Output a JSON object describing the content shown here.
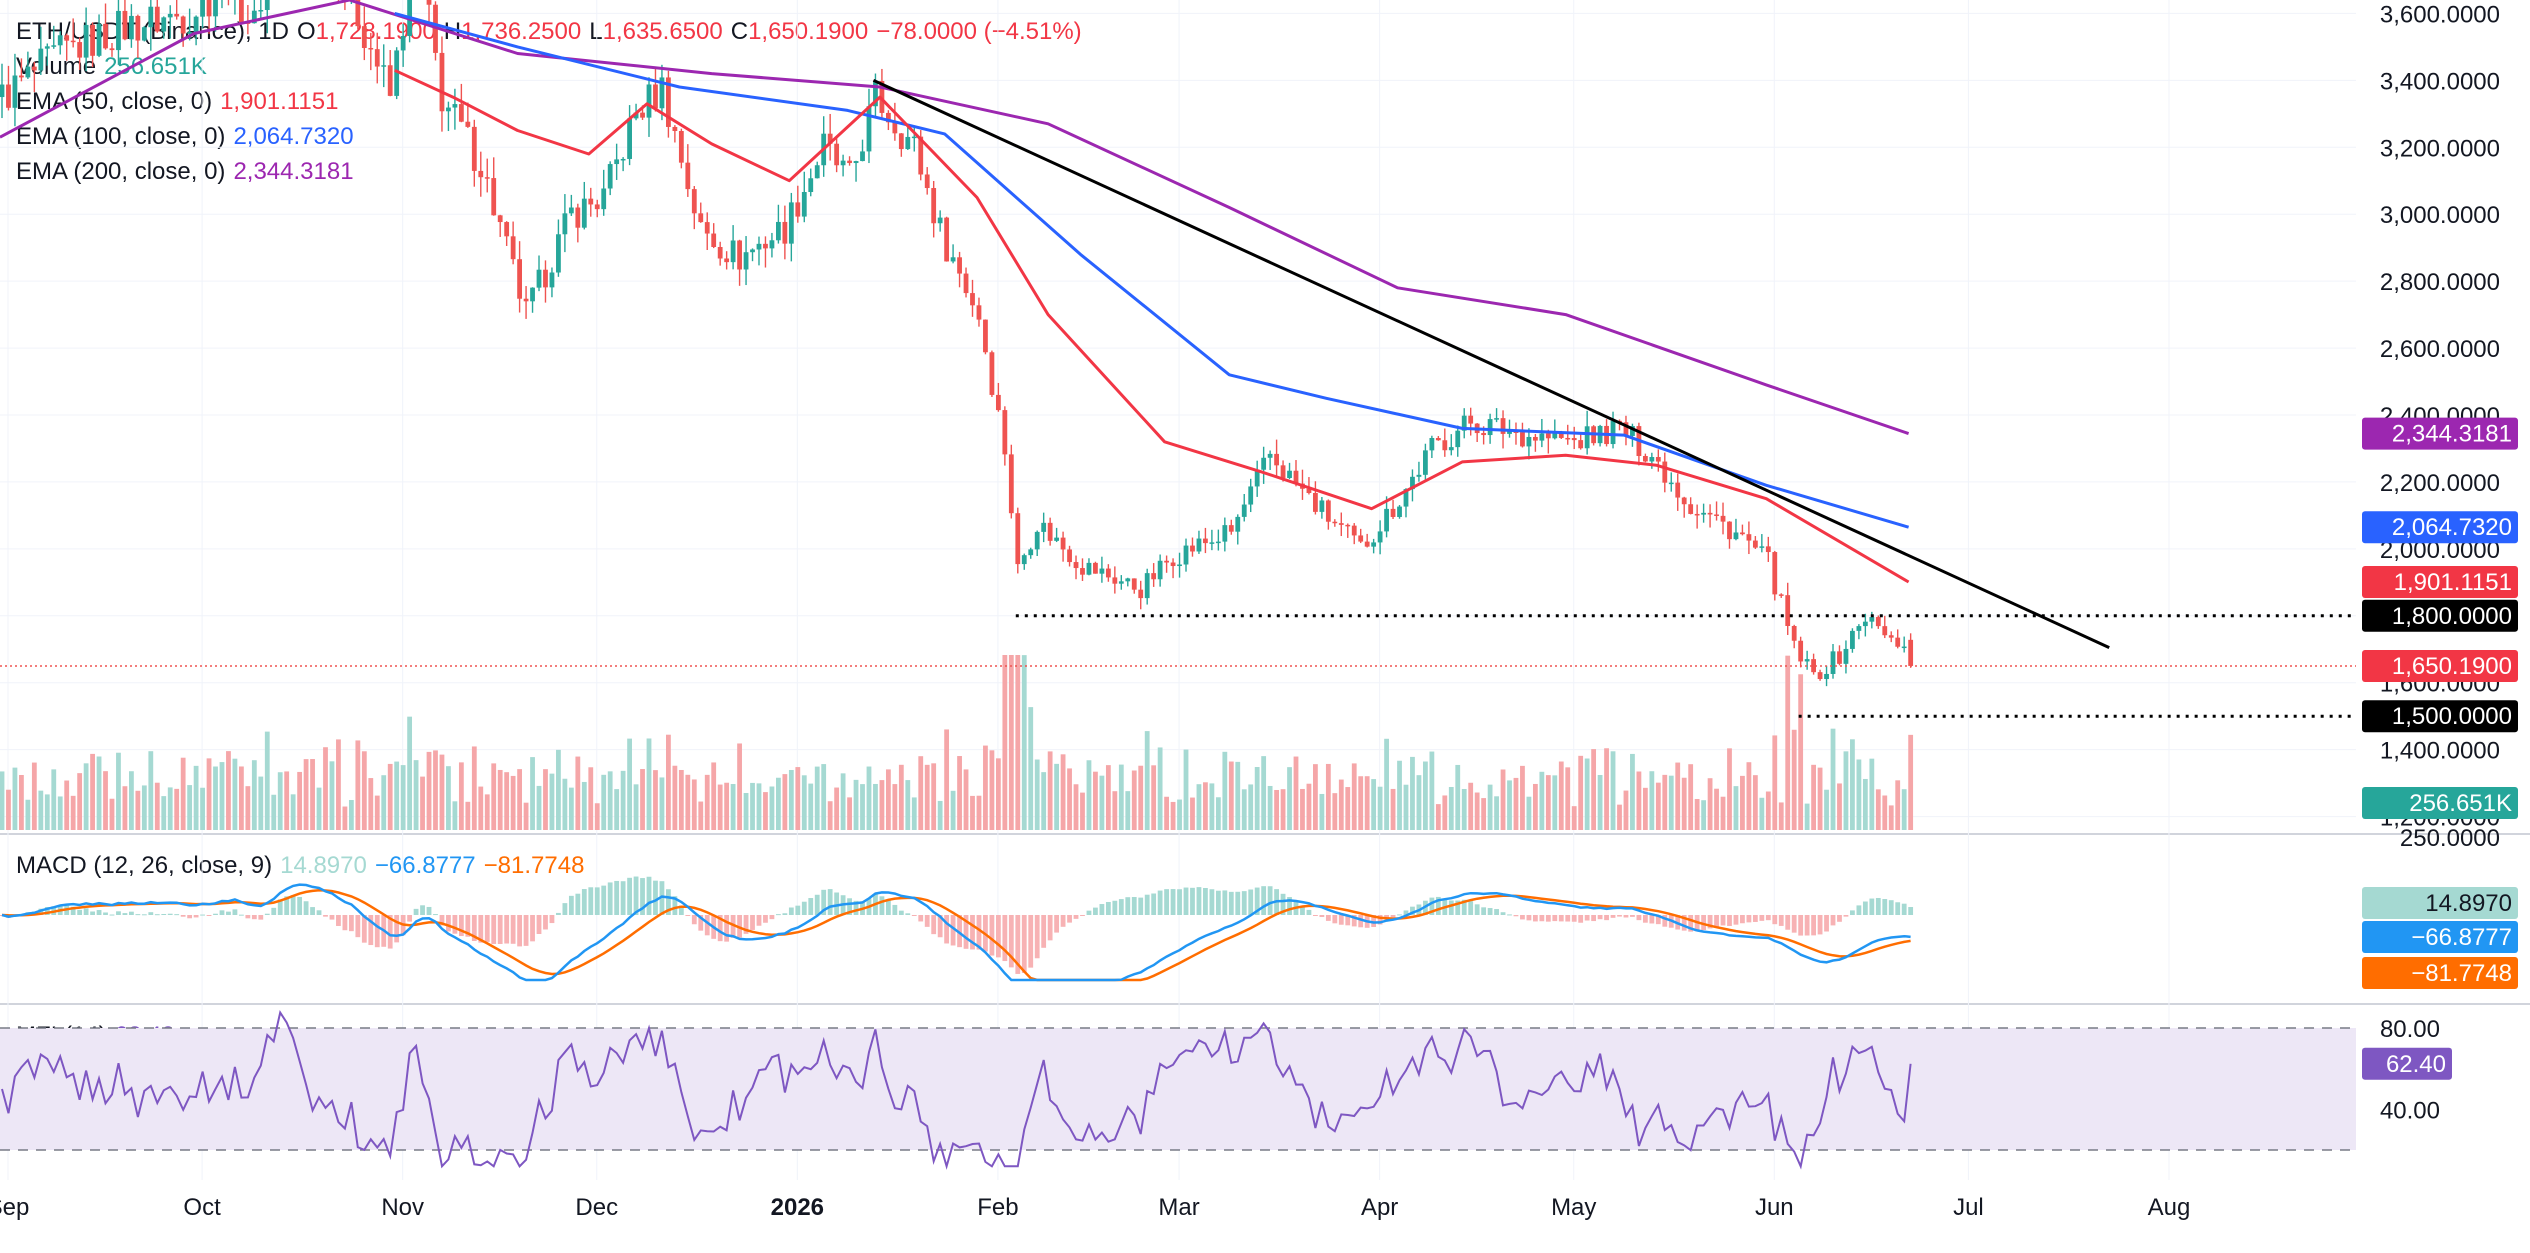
{
  "header": {
    "symbol": "ETH/USDT (Binance), 1D",
    "open_label": "O",
    "open": "1,728.1900",
    "high_label": "H",
    "high": "1,736.2500",
    "low_label": "L",
    "low": "1,635.6500",
    "close_label": "C",
    "close": "1,650.1900",
    "change": "−78.0000 (−4.51%)"
  },
  "legends": {
    "volume": {
      "label": "Volume",
      "value": "256.651K"
    },
    "ema50": {
      "label": "EMA (50, close, 0)",
      "value": "1,901.1151"
    },
    "ema100": {
      "label": "EMA (100, close, 0)",
      "value": "2,064.7320"
    },
    "ema200": {
      "label": "EMA (200, close, 0)",
      "value": "2,344.3181"
    },
    "macd": {
      "label": "MACD (12, 26, close, 9)",
      "hist": "14.8970",
      "macd": "−66.8777",
      "signal": "−81.7748"
    },
    "mfi": {
      "label": "MFI (14)",
      "value": "62.40"
    }
  },
  "colors": {
    "up": "#26a69a",
    "down": "#ef5350",
    "vol_up": "#a5d9d2",
    "vol_down": "#f5a6a8",
    "ema50": "#f23645",
    "ema100": "#2962ff",
    "ema200": "#9c27b0",
    "macd": "#2196f3",
    "signal": "#ff6d00",
    "hist_up": "#a5d9d2",
    "hist_down": "#f7b2b4",
    "mfi": "#7e57c2",
    "mfi_band": "#ede7f6"
  },
  "price_axis": {
    "ticks": [
      "3,600.0000",
      "3,400.0000",
      "3,200.0000",
      "3,000.0000",
      "2,800.0000",
      "2,600.0000",
      "2,400.0000",
      "2,200.0000",
      "2,000.0000",
      "1,800.0000",
      "1,600.0000",
      "1,400.0000",
      "1,200.0000"
    ],
    "tags": [
      {
        "text": "2,344.3181",
        "value": 2344.3181,
        "color": "#9c27b0"
      },
      {
        "text": "2,064.7320",
        "value": 2064.732,
        "color": "#2962ff"
      },
      {
        "text": "1,901.1151",
        "value": 1901.1151,
        "color": "#f23645"
      },
      {
        "text": "1,800.0000",
        "value": 1800,
        "color": "#000000"
      },
      {
        "text": "1,650.1900",
        "value": 1650.19,
        "color": "#f23645"
      },
      {
        "text": "1,500.0000",
        "value": 1500,
        "color": "#000000"
      }
    ],
    "volume_tag": {
      "text": "256.651K",
      "color": "#26a69a"
    }
  },
  "macd_axis": {
    "ticks": [
      "250.0000"
    ],
    "tags": [
      {
        "text": "14.8970",
        "color": "#a5d9d2",
        "dark": true
      },
      {
        "text": "−66.8777",
        "color": "#2196f3"
      },
      {
        "text": "−81.7748",
        "color": "#ff6d00"
      }
    ]
  },
  "mfi_axis": {
    "ticks": [
      "80.00",
      "40.00"
    ],
    "tag": {
      "text": "62.40",
      "color": "#7e57c2"
    }
  },
  "time_axis": [
    "Sep",
    "Oct",
    "Nov",
    "Dec",
    "2026",
    "Feb",
    "Mar",
    "Apr",
    "May",
    "Jun",
    "Jul",
    "Aug"
  ],
  "chart_data": {
    "type": "candlestick",
    "title": "ETH/USDT (Binance), 1D",
    "ylim": [
      1160,
      3640
    ],
    "last_price": 1650.19,
    "horizontal_levels": [
      1800,
      1500
    ],
    "trendline": {
      "from": [
        "2026-01-14",
        3400
      ],
      "to": [
        "2026-07-24",
        1705
      ]
    },
    "price_path": [
      [
        "2025-09-01",
        3350
      ],
      [
        "2025-09-10",
        3480
      ],
      [
        "2025-09-20",
        3560
      ],
      [
        "2025-09-30",
        3600
      ],
      [
        "2025-10-06",
        3700
      ],
      [
        "2025-10-10",
        3560
      ],
      [
        "2025-10-14",
        3950
      ],
      [
        "2025-10-22",
        3800
      ],
      [
        "2025-10-31",
        3350
      ],
      [
        "2025-11-04",
        3800
      ],
      [
        "2025-11-08",
        3350
      ],
      [
        "2025-11-14",
        3150
      ],
      [
        "2025-11-21",
        2700
      ],
      [
        "2025-11-28",
        3000
      ],
      [
        "2025-12-03",
        3050
      ],
      [
        "2025-12-08",
        3300
      ],
      [
        "2025-12-12",
        3380
      ],
      [
        "2025-12-18",
        2950
      ],
      [
        "2025-12-24",
        2870
      ],
      [
        "2025-12-31",
        2960
      ],
      [
        "2026-01-06",
        3200
      ],
      [
        "2026-01-10",
        3100
      ],
      [
        "2026-01-14",
        3350
      ],
      [
        "2026-01-20",
        3200
      ],
      [
        "2026-01-24",
        2950
      ],
      [
        "2026-01-30",
        2700
      ],
      [
        "2026-02-03",
        2300
      ],
      [
        "2026-02-05",
        1940
      ],
      [
        "2026-02-08",
        2080
      ],
      [
        "2026-02-15",
        1950
      ],
      [
        "2026-02-24",
        1880
      ],
      [
        "2026-03-01",
        1980
      ],
      [
        "2026-03-10",
        2050
      ],
      [
        "2026-03-16",
        2280
      ],
      [
        "2026-03-22",
        2150
      ],
      [
        "2026-03-30",
        2000
      ],
      [
        "2026-04-05",
        2150
      ],
      [
        "2026-04-10",
        2300
      ],
      [
        "2026-04-16",
        2380
      ],
      [
        "2026-04-25",
        2340
      ],
      [
        "2026-05-02",
        2320
      ],
      [
        "2026-05-09",
        2360
      ],
      [
        "2026-05-14",
        2280
      ],
      [
        "2026-05-20",
        2130
      ],
      [
        "2026-05-27",
        2050
      ],
      [
        "2026-06-01",
        1960
      ],
      [
        "2026-06-05",
        1700
      ],
      [
        "2026-06-08",
        1620
      ],
      [
        "2026-06-12",
        1680
      ],
      [
        "2026-06-16",
        1800
      ],
      [
        "2026-06-20",
        1720
      ],
      [
        "2026-06-22",
        1728.19
      ],
      [
        "2026-06-23",
        1650.19
      ]
    ],
    "ema50": [
      [
        "2025-11-01",
        3430
      ],
      [
        "2025-11-10",
        3350
      ],
      [
        "2025-11-20",
        3250
      ],
      [
        "2025-12-01",
        3180
      ],
      [
        "2025-12-10",
        3330
      ],
      [
        "2025-12-20",
        3210
      ],
      [
        "2026-01-01",
        3100
      ],
      [
        "2026-01-15",
        3350
      ],
      [
        "2026-01-30",
        3050
      ],
      [
        "2026-02-10",
        2700
      ],
      [
        "2026-02-28",
        2320
      ],
      [
        "2026-03-15",
        2230
      ],
      [
        "2026-04-01",
        2120
      ],
      [
        "2026-04-15",
        2260
      ],
      [
        "2026-05-01",
        2280
      ],
      [
        "2026-05-15",
        2250
      ],
      [
        "2026-06-01",
        2150
      ],
      [
        "2026-06-23",
        1901.1151
      ]
    ],
    "ema100": [
      [
        "2025-11-01",
        3600
      ],
      [
        "2025-11-20",
        3500
      ],
      [
        "2025-12-15",
        3380
      ],
      [
        "2026-01-10",
        3310
      ],
      [
        "2026-01-25",
        3240
      ],
      [
        "2026-02-15",
        2880
      ],
      [
        "2026-03-10",
        2520
      ],
      [
        "2026-03-25",
        2450
      ],
      [
        "2026-04-15",
        2360
      ],
      [
        "2026-05-10",
        2340
      ],
      [
        "2026-06-01",
        2190
      ],
      [
        "2026-06-23",
        2064.732
      ]
    ],
    "ema200": [
      [
        "2025-09-01",
        3230
      ],
      [
        "2025-10-01",
        3540
      ],
      [
        "2025-10-25",
        3640
      ],
      [
        "2025-11-20",
        3480
      ],
      [
        "2025-12-20",
        3420
      ],
      [
        "2026-01-15",
        3380
      ],
      [
        "2026-02-10",
        3270
      ],
      [
        "2026-03-10",
        3020
      ],
      [
        "2026-04-05",
        2780
      ],
      [
        "2026-05-01",
        2700
      ],
      [
        "2026-06-01",
        2490
      ],
      [
        "2026-06-23",
        2344.3181
      ]
    ],
    "macd_series": [
      "MACD",
      "Signal",
      "Histogram"
    ],
    "mfi": {
      "last": 62.4,
      "bands": [
        80,
        20
      ]
    }
  }
}
